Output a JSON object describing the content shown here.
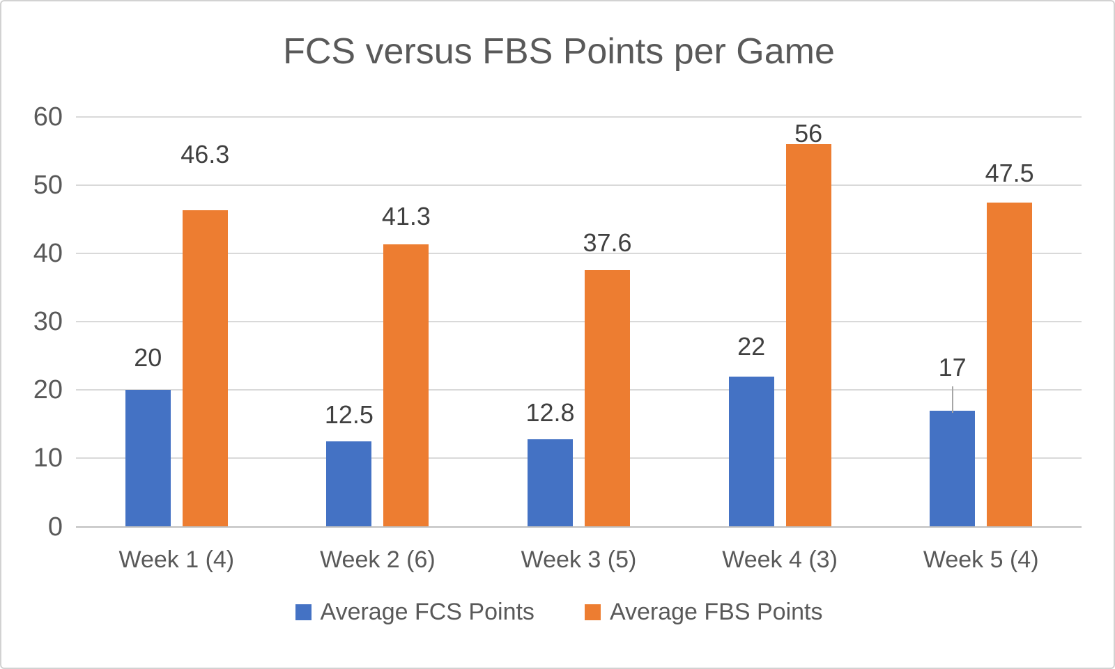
{
  "chart_data": {
    "type": "bar",
    "title": "FCS versus FBS Points per Game",
    "categories": [
      "Week 1 (4)",
      "Week 2 (6)",
      "Week 3 (5)",
      "Week 4 (3)",
      "Week 5 (4)"
    ],
    "series": [
      {
        "name": "Average FCS Points",
        "color": "#4472C4",
        "values": [
          20,
          12.5,
          12.8,
          22,
          17
        ],
        "labels": [
          "20",
          "12.5",
          "12.8",
          "22",
          "17"
        ]
      },
      {
        "name": "Average FBS Points",
        "color": "#ED7D31",
        "values": [
          46.3,
          41.3,
          37.6,
          56,
          47.5
        ],
        "labels": [
          "46.3",
          "41.3",
          "37.6",
          "56",
          "47.5"
        ]
      }
    ],
    "y_ticks": [
      0,
      10,
      20,
      30,
      40,
      50,
      60
    ],
    "ylim": [
      0,
      60
    ],
    "xlabel": "",
    "ylabel": "",
    "grid": true,
    "legend_position": "bottom",
    "annotations": {
      "moved_label_leader_line": {
        "series_index": 0,
        "point_index": 4
      }
    },
    "colors": {
      "fcs_blue": "#4472C4",
      "fbs_orange": "#ED7D31",
      "title_text": "#595959",
      "axis_text": "#595959",
      "data_label_text": "#404040",
      "gridline": "#D9D9D9",
      "leader_line": "#A6A6A6"
    }
  }
}
